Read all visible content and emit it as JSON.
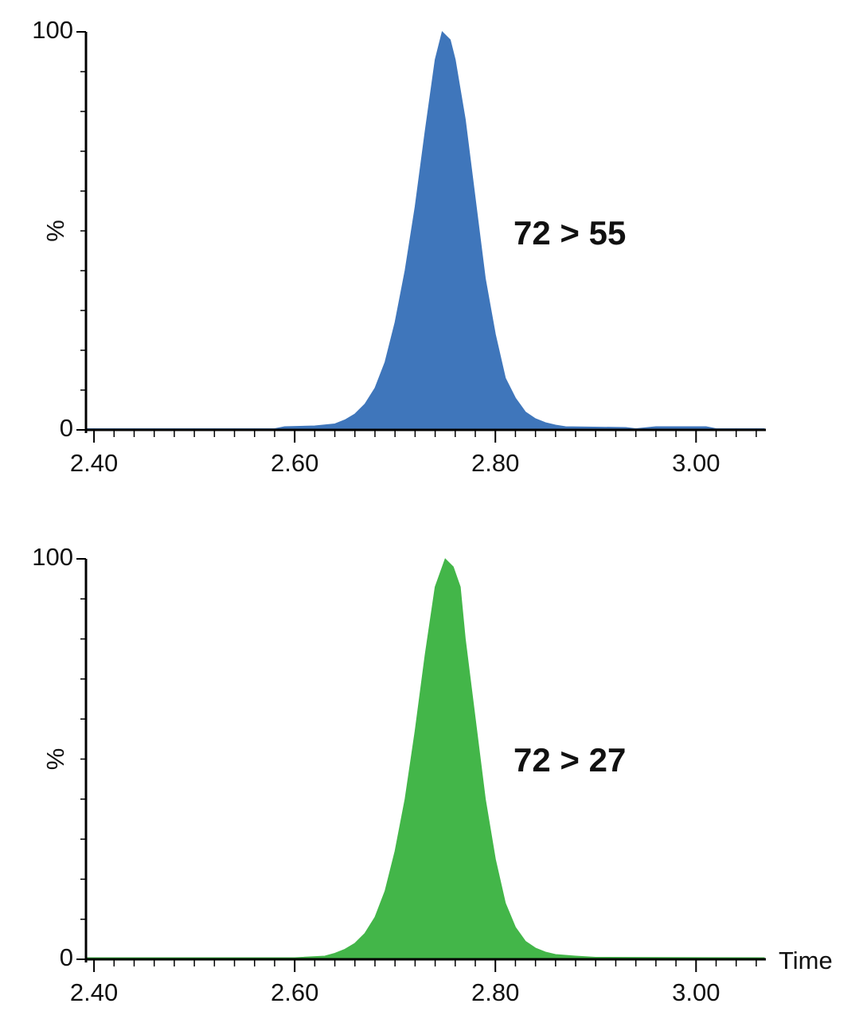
{
  "chart_data": [
    {
      "type": "area",
      "annotation": "72 > 55",
      "ylabel": "%",
      "color": "#3f76bb",
      "x": [
        2.392,
        2.58,
        2.59,
        2.62,
        2.64,
        2.65,
        2.66,
        2.67,
        2.68,
        2.69,
        2.7,
        2.71,
        2.72,
        2.73,
        2.74,
        2.747,
        2.755,
        2.76,
        2.77,
        2.78,
        2.79,
        2.8,
        2.81,
        2.82,
        2.83,
        2.84,
        2.85,
        2.86,
        2.87,
        2.93,
        2.94,
        2.96,
        3.01,
        3.02,
        3.068
      ],
      "values": [
        0.3,
        0.3,
        0.8,
        1,
        1.5,
        2.5,
        4,
        6.5,
        10.5,
        17,
        27,
        40,
        56,
        75,
        93,
        100,
        98,
        93,
        78,
        58,
        38,
        24,
        13,
        8,
        4.5,
        2.8,
        1.8,
        1.2,
        0.8,
        0.6,
        0.3,
        0.8,
        0.8,
        0.3,
        0.3
      ],
      "xlim": [
        2.392,
        3.068
      ],
      "ylim": [
        0,
        100
      ],
      "xticks": [
        {
          "value": 2.4,
          "label": "2.40"
        },
        {
          "value": 2.6,
          "label": "2.60"
        },
        {
          "value": 2.8,
          "label": "2.80"
        },
        {
          "value": 3.0,
          "label": "3.00"
        }
      ],
      "yticks": [
        0,
        100
      ],
      "xminorticks": [
        2.42,
        2.44,
        2.46,
        2.48,
        2.5,
        2.52,
        2.54,
        2.56,
        2.58,
        2.62,
        2.64,
        2.66,
        2.68,
        2.7,
        2.72,
        2.74,
        2.76,
        2.78,
        2.82,
        2.84,
        2.86,
        2.88,
        2.9,
        2.92,
        2.94,
        2.96,
        2.98,
        3.02,
        3.04,
        3.06
      ],
      "yminorticks": [
        10,
        20,
        30,
        40,
        50,
        60,
        70,
        80,
        90
      ]
    },
    {
      "type": "area",
      "annotation": "72 > 27",
      "ylabel": "%",
      "xlabel": "Time",
      "color": "#43b649",
      "x": [
        2.392,
        2.6,
        2.63,
        2.64,
        2.65,
        2.66,
        2.67,
        2.68,
        2.69,
        2.7,
        2.71,
        2.72,
        2.73,
        2.74,
        2.75,
        2.758,
        2.765,
        2.77,
        2.78,
        2.79,
        2.8,
        2.81,
        2.82,
        2.83,
        2.84,
        2.85,
        2.86,
        2.88,
        2.9,
        3.068
      ],
      "values": [
        0.4,
        0.4,
        0.8,
        1.5,
        2.5,
        4,
        6.5,
        10.5,
        17,
        27,
        40,
        57,
        76,
        93,
        100,
        98,
        93,
        80,
        60,
        40,
        25,
        14,
        8,
        4.5,
        2.8,
        1.8,
        1.2,
        0.8,
        0.5,
        0.4
      ],
      "xlim": [
        2.392,
        3.068
      ],
      "ylim": [
        0,
        100
      ],
      "xticks": [
        {
          "value": 2.4,
          "label": "2.40"
        },
        {
          "value": 2.6,
          "label": "2.60"
        },
        {
          "value": 2.8,
          "label": "2.80"
        },
        {
          "value": 3.0,
          "label": "3.00"
        }
      ],
      "yticks": [
        0,
        100
      ],
      "xminorticks": [
        2.42,
        2.44,
        2.46,
        2.48,
        2.5,
        2.52,
        2.54,
        2.56,
        2.58,
        2.62,
        2.64,
        2.66,
        2.68,
        2.7,
        2.72,
        2.74,
        2.76,
        2.78,
        2.82,
        2.84,
        2.86,
        2.88,
        2.9,
        2.92,
        2.94,
        2.96,
        2.98,
        3.02,
        3.04,
        3.06
      ],
      "yminorticks": [
        10,
        20,
        30,
        40,
        50,
        60,
        70,
        80,
        90
      ]
    }
  ]
}
